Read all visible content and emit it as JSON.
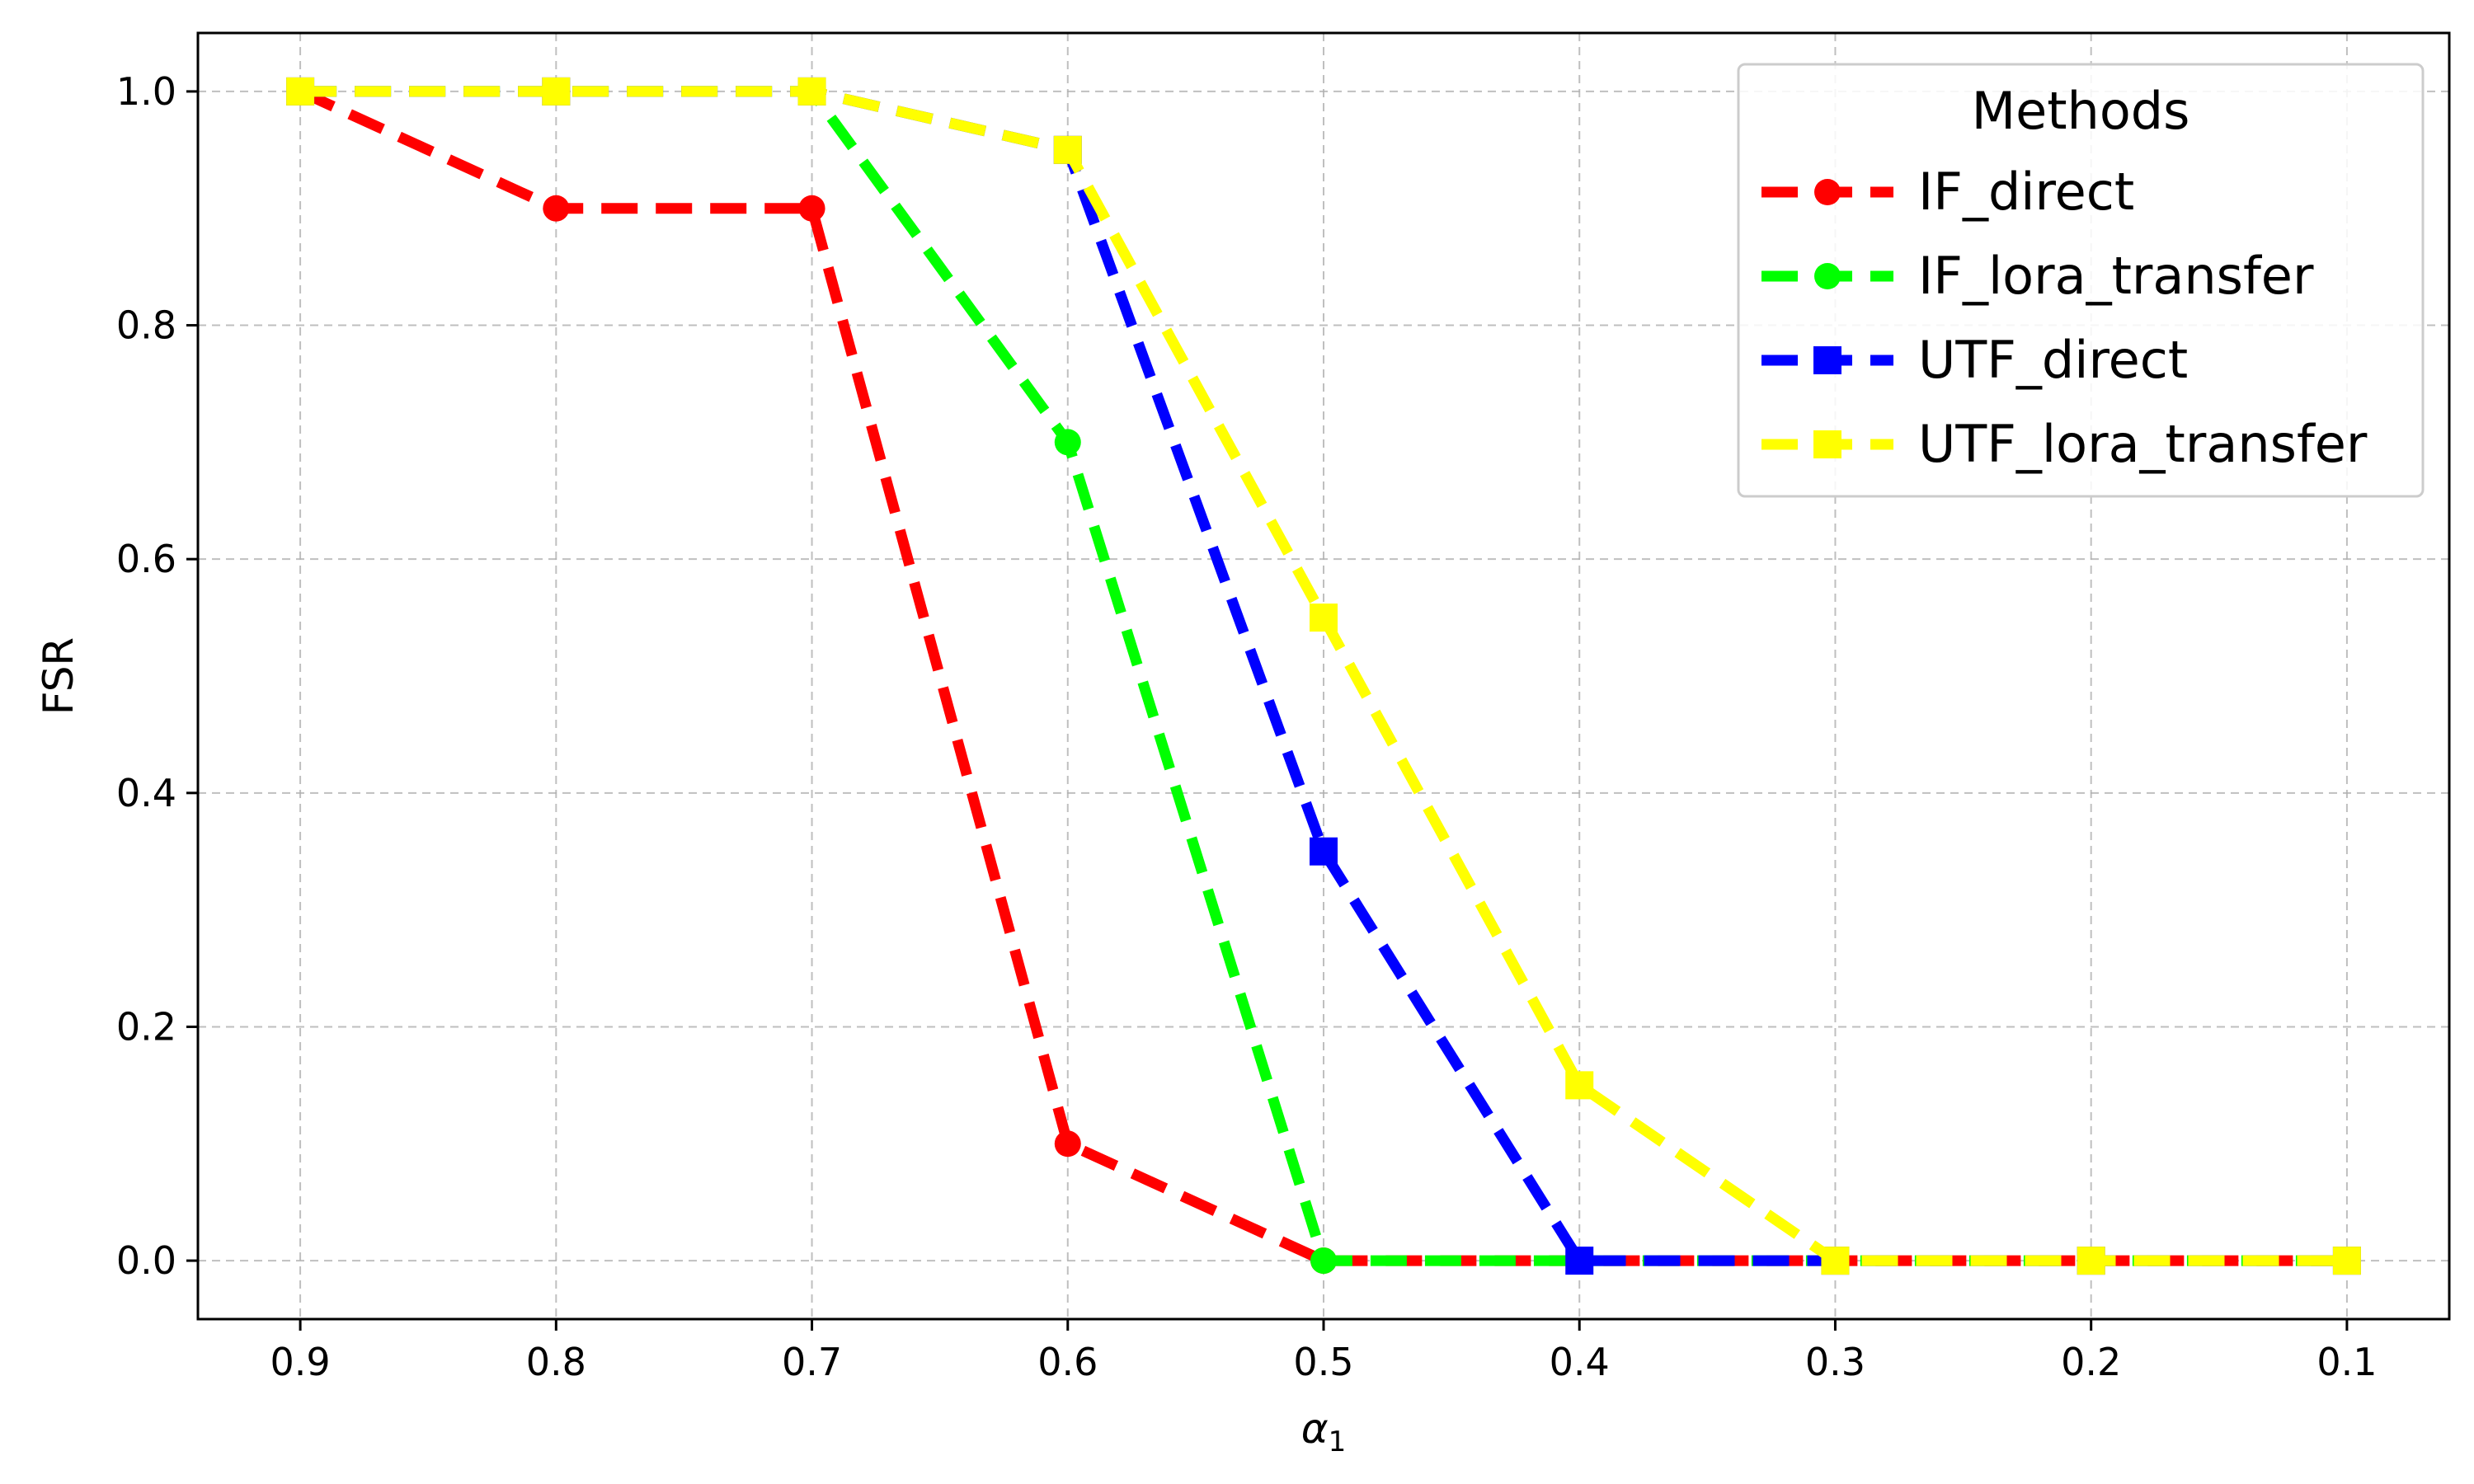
{
  "chart_data": {
    "type": "line",
    "xlabel": "α",
    "xlabel_subscript": "1",
    "ylabel": "FSR",
    "x": [
      0.9,
      0.8,
      0.7,
      0.6,
      0.5,
      0.4,
      0.3,
      0.2,
      0.1
    ],
    "x_tick_labels": [
      "0.9",
      "0.8",
      "0.7",
      "0.6",
      "0.5",
      "0.4",
      "0.3",
      "0.2",
      "0.1"
    ],
    "x_axis_reversed": true,
    "xlim": [
      0.94,
      0.06
    ],
    "ylim": [
      -0.05,
      1.05
    ],
    "y_ticks": [
      0.0,
      0.2,
      0.4,
      0.6,
      0.8,
      1.0
    ],
    "y_tick_labels": [
      "0.0",
      "0.2",
      "0.4",
      "0.6",
      "0.8",
      "1.0"
    ],
    "grid": true,
    "legend": {
      "title": "Methods",
      "placement": "top-right"
    },
    "series": [
      {
        "name": "IF_direct",
        "color": "#ff0000",
        "marker": "circle",
        "line_style": "dashed",
        "values": [
          1.0,
          0.9,
          0.9,
          0.1,
          0.0,
          0.0,
          0.0,
          0.0,
          0.0
        ]
      },
      {
        "name": "IF_lora_transfer",
        "color": "#00ff00",
        "marker": "circle",
        "line_style": "dashed",
        "values": [
          1.0,
          1.0,
          1.0,
          0.7,
          0.0,
          0.0,
          0.0,
          0.0,
          0.0
        ]
      },
      {
        "name": "UTF_direct",
        "color": "#0000ff",
        "marker": "square",
        "line_style": "dashed",
        "values": [
          1.0,
          1.0,
          1.0,
          0.95,
          0.35,
          0.0,
          0.0,
          0.0,
          0.0
        ]
      },
      {
        "name": "UTF_lora_transfer",
        "color": "#ffff00",
        "marker": "square",
        "line_style": "dashed",
        "values": [
          1.0,
          1.0,
          1.0,
          0.95,
          0.55,
          0.15,
          0.0,
          0.0,
          0.0
        ]
      }
    ]
  }
}
